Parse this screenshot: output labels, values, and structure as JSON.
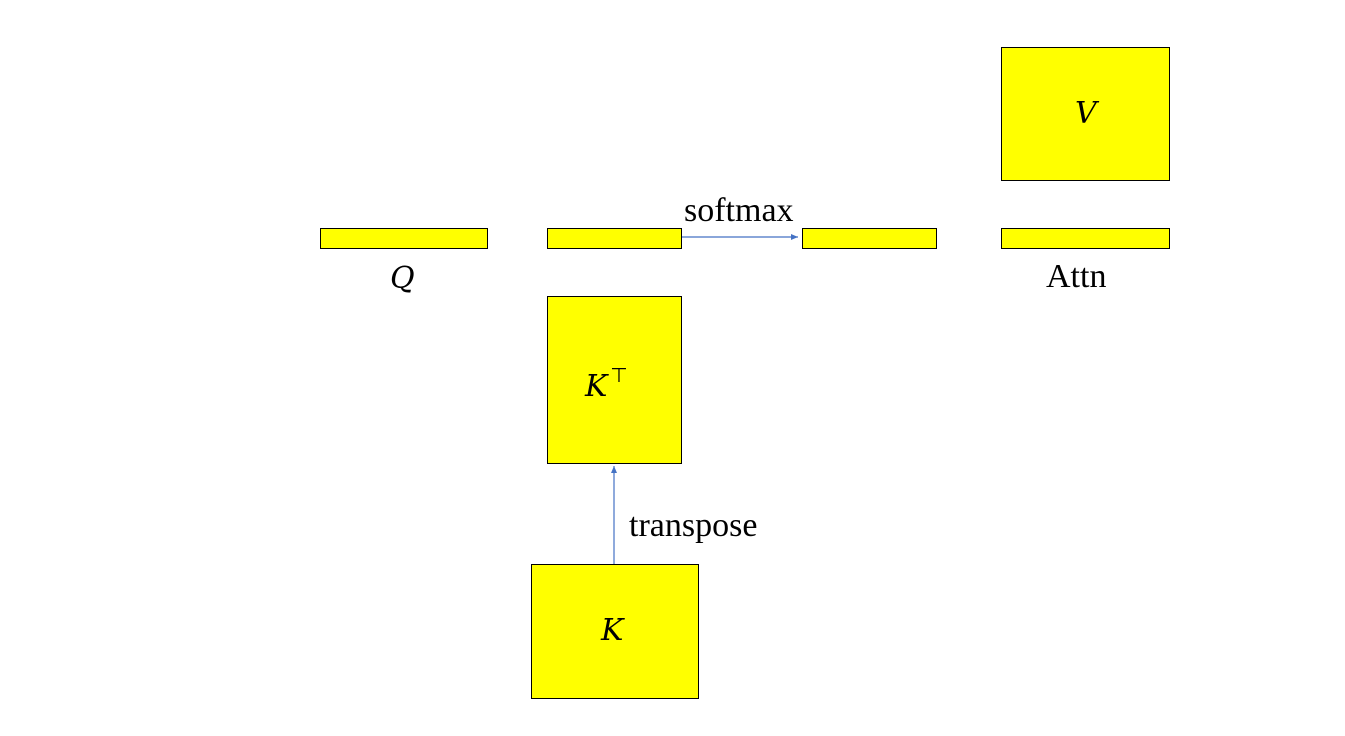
{
  "colors": {
    "box_fill": "#ffff00",
    "box_stroke": "#000000",
    "arrow": "#4472c4"
  },
  "labels": {
    "q": "Q",
    "attn": "Attn",
    "v": "V",
    "kt_base": "K",
    "kt_sup": "⊤",
    "k": "K",
    "softmax": "softmax",
    "transpose": "transpose"
  }
}
